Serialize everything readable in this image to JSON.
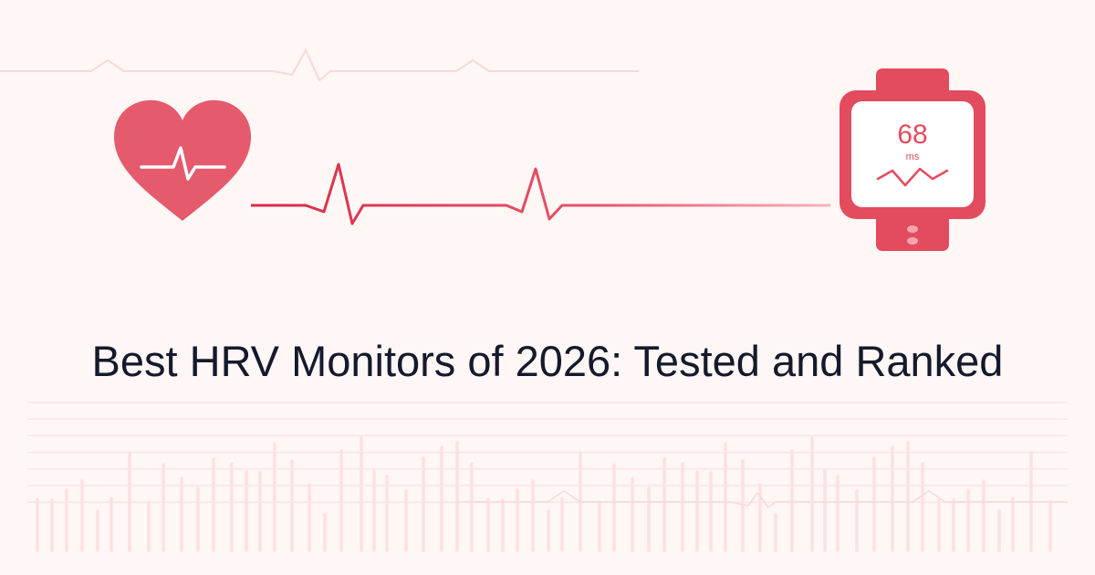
{
  "title": "Best HRV Monitors of 2026: Tested and Ranked",
  "watch": {
    "value": "68",
    "unit": "ms"
  },
  "colors": {
    "accent": "#e34b5f",
    "heart": "#e55a6d",
    "background": "#fff6f6",
    "title": "#141a2b",
    "bars": "#fde0e3"
  },
  "icons": [
    "heart-ecg-icon",
    "smartwatch-icon",
    "ecg-line"
  ]
}
